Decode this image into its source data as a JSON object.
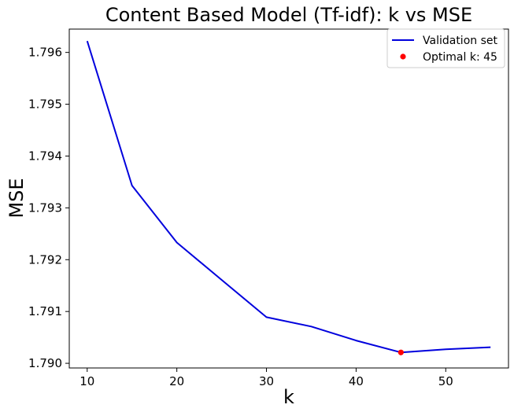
{
  "chart_data": {
    "type": "line",
    "title": "Content Based Model (Tf-idf): k vs MSE",
    "xlabel": "k",
    "ylabel": "MSE",
    "xlim": [
      8,
      57
    ],
    "ylim": [
      1.78991,
      1.79645
    ],
    "xticks": [
      10,
      20,
      30,
      40,
      50
    ],
    "yticks": [
      1.79,
      1.791,
      1.792,
      1.793,
      1.794,
      1.795,
      1.796
    ],
    "ytick_labels": [
      "1.790",
      "1.791",
      "1.792",
      "1.793",
      "1.794",
      "1.795",
      "1.796"
    ],
    "series": [
      {
        "name": "Validation set",
        "color": "#0000dd",
        "x": [
          10,
          15,
          20,
          25,
          30,
          35,
          40,
          45,
          50,
          55
        ],
        "y": [
          1.79622,
          1.79343,
          1.79233,
          1.79161,
          1.79089,
          1.79071,
          1.79044,
          1.79021,
          1.79027,
          1.79031
        ]
      }
    ],
    "highlight": {
      "name": "Optimal k: 45",
      "color": "#ff0000",
      "x": 45,
      "y": 1.79021
    },
    "legend_position": "top-right",
    "grid": false
  }
}
